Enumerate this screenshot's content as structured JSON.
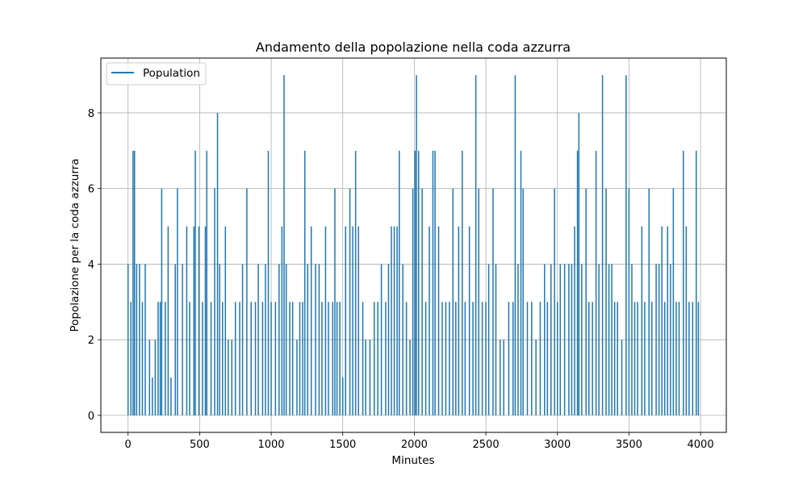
{
  "chart_data": {
    "type": "line",
    "title": "Andamento della popolazione nella coda azzurra",
    "xlabel": "Minutes",
    "ylabel": "Popolazione per la coda azzurra",
    "xlim": [
      -190,
      4180
    ],
    "ylim": [
      -0.45,
      9.45
    ],
    "xticks": [
      0,
      500,
      1000,
      1500,
      2000,
      2500,
      3000,
      3500,
      4000
    ],
    "yticks": [
      0,
      2,
      4,
      6,
      8
    ],
    "grid": true,
    "legend_position": "top-left",
    "series_color": "#1f77b4",
    "series": [
      {
        "name": "Population",
        "peaks": [
          [
            0,
            4
          ],
          [
            20,
            3
          ],
          [
            35,
            7
          ],
          [
            45,
            7
          ],
          [
            60,
            4
          ],
          [
            80,
            4
          ],
          [
            100,
            3
          ],
          [
            120,
            4
          ],
          [
            150,
            2
          ],
          [
            170,
            1
          ],
          [
            190,
            2
          ],
          [
            210,
            3
          ],
          [
            225,
            3
          ],
          [
            235,
            6
          ],
          [
            260,
            3
          ],
          [
            280,
            5
          ],
          [
            300,
            1
          ],
          [
            330,
            4
          ],
          [
            345,
            6
          ],
          [
            380,
            4
          ],
          [
            410,
            5
          ],
          [
            430,
            3
          ],
          [
            460,
            5
          ],
          [
            470,
            7
          ],
          [
            495,
            5
          ],
          [
            520,
            3
          ],
          [
            540,
            5
          ],
          [
            550,
            7
          ],
          [
            580,
            3
          ],
          [
            605,
            6
          ],
          [
            625,
            8
          ],
          [
            640,
            4
          ],
          [
            660,
            3
          ],
          [
            680,
            5
          ],
          [
            700,
            2
          ],
          [
            725,
            2
          ],
          [
            750,
            3
          ],
          [
            780,
            3
          ],
          [
            800,
            4
          ],
          [
            830,
            6
          ],
          [
            860,
            3
          ],
          [
            890,
            3
          ],
          [
            910,
            4
          ],
          [
            940,
            3
          ],
          [
            960,
            4
          ],
          [
            980,
            7
          ],
          [
            1000,
            3
          ],
          [
            1030,
            3
          ],
          [
            1055,
            4
          ],
          [
            1075,
            5
          ],
          [
            1090,
            9
          ],
          [
            1105,
            4
          ],
          [
            1130,
            3
          ],
          [
            1150,
            3
          ],
          [
            1180,
            2
          ],
          [
            1200,
            3
          ],
          [
            1220,
            3
          ],
          [
            1235,
            7
          ],
          [
            1255,
            4
          ],
          [
            1280,
            5
          ],
          [
            1310,
            4
          ],
          [
            1335,
            4
          ],
          [
            1355,
            3
          ],
          [
            1380,
            5
          ],
          [
            1400,
            3
          ],
          [
            1430,
            3
          ],
          [
            1445,
            6
          ],
          [
            1460,
            3
          ],
          [
            1480,
            3
          ],
          [
            1500,
            1
          ],
          [
            1520,
            5
          ],
          [
            1550,
            6
          ],
          [
            1570,
            5
          ],
          [
            1590,
            7
          ],
          [
            1610,
            5
          ],
          [
            1640,
            3
          ],
          [
            1660,
            2
          ],
          [
            1690,
            2
          ],
          [
            1720,
            3
          ],
          [
            1745,
            3
          ],
          [
            1770,
            4
          ],
          [
            1800,
            3
          ],
          [
            1820,
            4
          ],
          [
            1840,
            5
          ],
          [
            1860,
            5
          ],
          [
            1880,
            5
          ],
          [
            1895,
            7
          ],
          [
            1920,
            4
          ],
          [
            1945,
            3
          ],
          [
            1970,
            2
          ],
          [
            1990,
            6
          ],
          [
            2005,
            7
          ],
          [
            2015,
            9
          ],
          [
            2030,
            7
          ],
          [
            2055,
            6
          ],
          [
            2080,
            3
          ],
          [
            2105,
            5
          ],
          [
            2130,
            7
          ],
          [
            2145,
            7
          ],
          [
            2170,
            5
          ],
          [
            2195,
            3
          ],
          [
            2220,
            3
          ],
          [
            2245,
            3
          ],
          [
            2270,
            6
          ],
          [
            2290,
            3
          ],
          [
            2310,
            5
          ],
          [
            2335,
            7
          ],
          [
            2355,
            3
          ],
          [
            2385,
            5
          ],
          [
            2410,
            3
          ],
          [
            2430,
            9
          ],
          [
            2450,
            6
          ],
          [
            2475,
            3
          ],
          [
            2500,
            3
          ],
          [
            2520,
            4
          ],
          [
            2550,
            6
          ],
          [
            2570,
            4
          ],
          [
            2600,
            2
          ],
          [
            2625,
            2
          ],
          [
            2660,
            3
          ],
          [
            2690,
            3
          ],
          [
            2705,
            9
          ],
          [
            2725,
            4
          ],
          [
            2745,
            7
          ],
          [
            2760,
            6
          ],
          [
            2790,
            3
          ],
          [
            2820,
            3
          ],
          [
            2850,
            2
          ],
          [
            2880,
            3
          ],
          [
            2910,
            4
          ],
          [
            2930,
            3
          ],
          [
            2955,
            4
          ],
          [
            2980,
            6
          ],
          [
            3000,
            3
          ],
          [
            3020,
            4
          ],
          [
            3050,
            4
          ],
          [
            3080,
            4
          ],
          [
            3100,
            4
          ],
          [
            3120,
            5
          ],
          [
            3140,
            7
          ],
          [
            3150,
            8
          ],
          [
            3170,
            4
          ],
          [
            3200,
            6
          ],
          [
            3220,
            3
          ],
          [
            3245,
            3
          ],
          [
            3270,
            7
          ],
          [
            3290,
            4
          ],
          [
            3315,
            9
          ],
          [
            3340,
            6
          ],
          [
            3360,
            4
          ],
          [
            3380,
            4
          ],
          [
            3400,
            3
          ],
          [
            3420,
            3
          ],
          [
            3450,
            2
          ],
          [
            3480,
            9
          ],
          [
            3500,
            6
          ],
          [
            3520,
            4
          ],
          [
            3540,
            3
          ],
          [
            3560,
            3
          ],
          [
            3590,
            5
          ],
          [
            3610,
            3
          ],
          [
            3640,
            6
          ],
          [
            3660,
            3
          ],
          [
            3690,
            4
          ],
          [
            3710,
            4
          ],
          [
            3730,
            5
          ],
          [
            3750,
            3
          ],
          [
            3770,
            5
          ],
          [
            3790,
            4
          ],
          [
            3810,
            6
          ],
          [
            3830,
            3
          ],
          [
            3850,
            3
          ],
          [
            3880,
            7
          ],
          [
            3900,
            5
          ],
          [
            3920,
            3
          ],
          [
            3945,
            3
          ],
          [
            3970,
            7
          ],
          [
            3985,
            3
          ]
        ]
      }
    ]
  }
}
